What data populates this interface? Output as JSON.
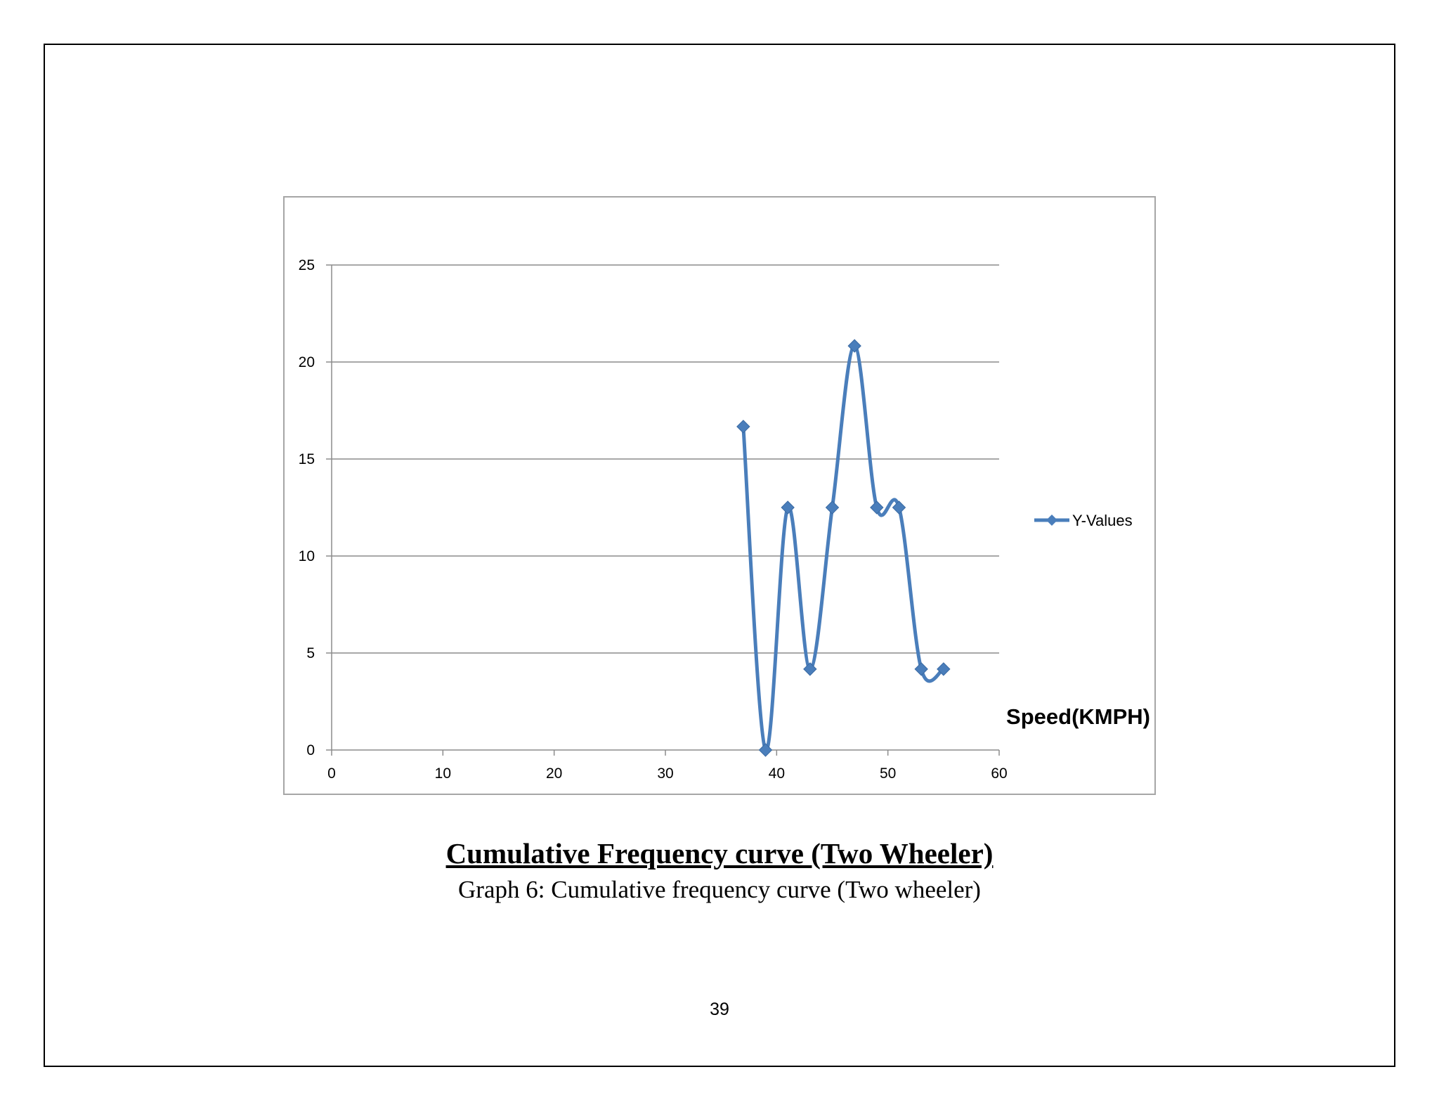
{
  "caption": {
    "title": "Cumulative Frequency curve (Two Wheeler)",
    "subtitle": "Graph 6: Cumulative frequency curve (Two wheeler)"
  },
  "page_number": "39",
  "chart_data": {
    "type": "line",
    "smooth": true,
    "x": [
      37,
      39,
      41,
      43,
      45,
      47,
      49,
      51,
      53,
      55
    ],
    "series": [
      {
        "name": "Y-Values",
        "values": [
          16.67,
          0,
          12.5,
          4.17,
          12.5,
          20.83,
          12.5,
          12.5,
          4.17,
          4.17
        ],
        "color": "#4a7ebb"
      }
    ],
    "xlim": [
      0,
      60
    ],
    "ylim": [
      0,
      25
    ],
    "xticks": [
      0,
      10,
      20,
      30,
      40,
      50,
      60
    ],
    "yticks": [
      0,
      5,
      10,
      15,
      20,
      25
    ],
    "xlabel": "Speed(KMPH)",
    "ylabel": "",
    "title": "",
    "grid": "horizontal",
    "legend_position": "right",
    "marker": "diamond"
  }
}
